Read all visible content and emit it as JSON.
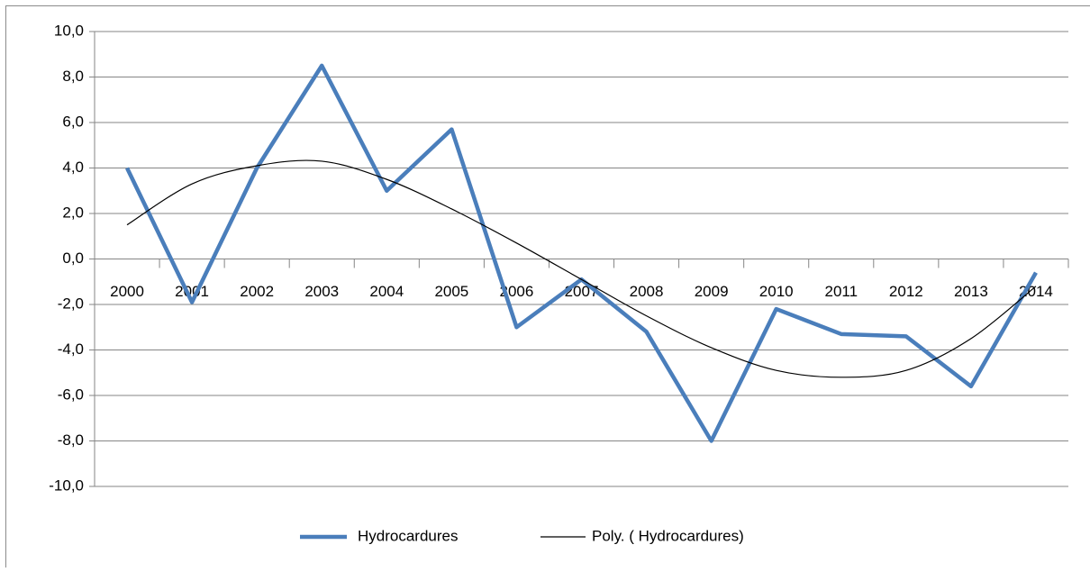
{
  "chart_data": {
    "type": "line",
    "categories": [
      "2000",
      "2001",
      "2002",
      "2003",
      "2004",
      "2005",
      "2006",
      "2007",
      "2008",
      "2009",
      "2010",
      "2011",
      "2012",
      "2013",
      "2014"
    ],
    "series": [
      {
        "name": "Hydrocardures",
        "color": "#4a7ebb",
        "values": [
          4.0,
          -1.9,
          4.0,
          8.5,
          3.0,
          5.7,
          -3.0,
          -0.9,
          -3.2,
          -8.0,
          -2.2,
          -3.3,
          -3.4,
          -5.6,
          -0.6
        ]
      },
      {
        "name": "Poly. ( Hydrocardures)",
        "color": "#000000",
        "values": [
          1.5,
          3.3,
          4.1,
          4.3,
          3.5,
          2.2,
          0.7,
          -0.9,
          -2.5,
          -3.9,
          -4.9,
          -5.2,
          -4.9,
          -3.5,
          -1.2
        ]
      }
    ],
    "ylim": [
      -10,
      10
    ],
    "yticks": [
      {
        "value": -10,
        "label": "-10,0"
      },
      {
        "value": -8,
        "label": "-8,0"
      },
      {
        "value": -6,
        "label": "-6,0"
      },
      {
        "value": -4,
        "label": "-4,0"
      },
      {
        "value": -2,
        "label": "-2,0"
      },
      {
        "value": 0,
        "label": "0,0"
      },
      {
        "value": 2,
        "label": "2,0"
      },
      {
        "value": 4,
        "label": "4,0"
      },
      {
        "value": 6,
        "label": "6,0"
      },
      {
        "value": 8,
        "label": "8,0"
      },
      {
        "value": 10,
        "label": "10,0"
      }
    ],
    "grid": true,
    "legend": "bottom"
  }
}
